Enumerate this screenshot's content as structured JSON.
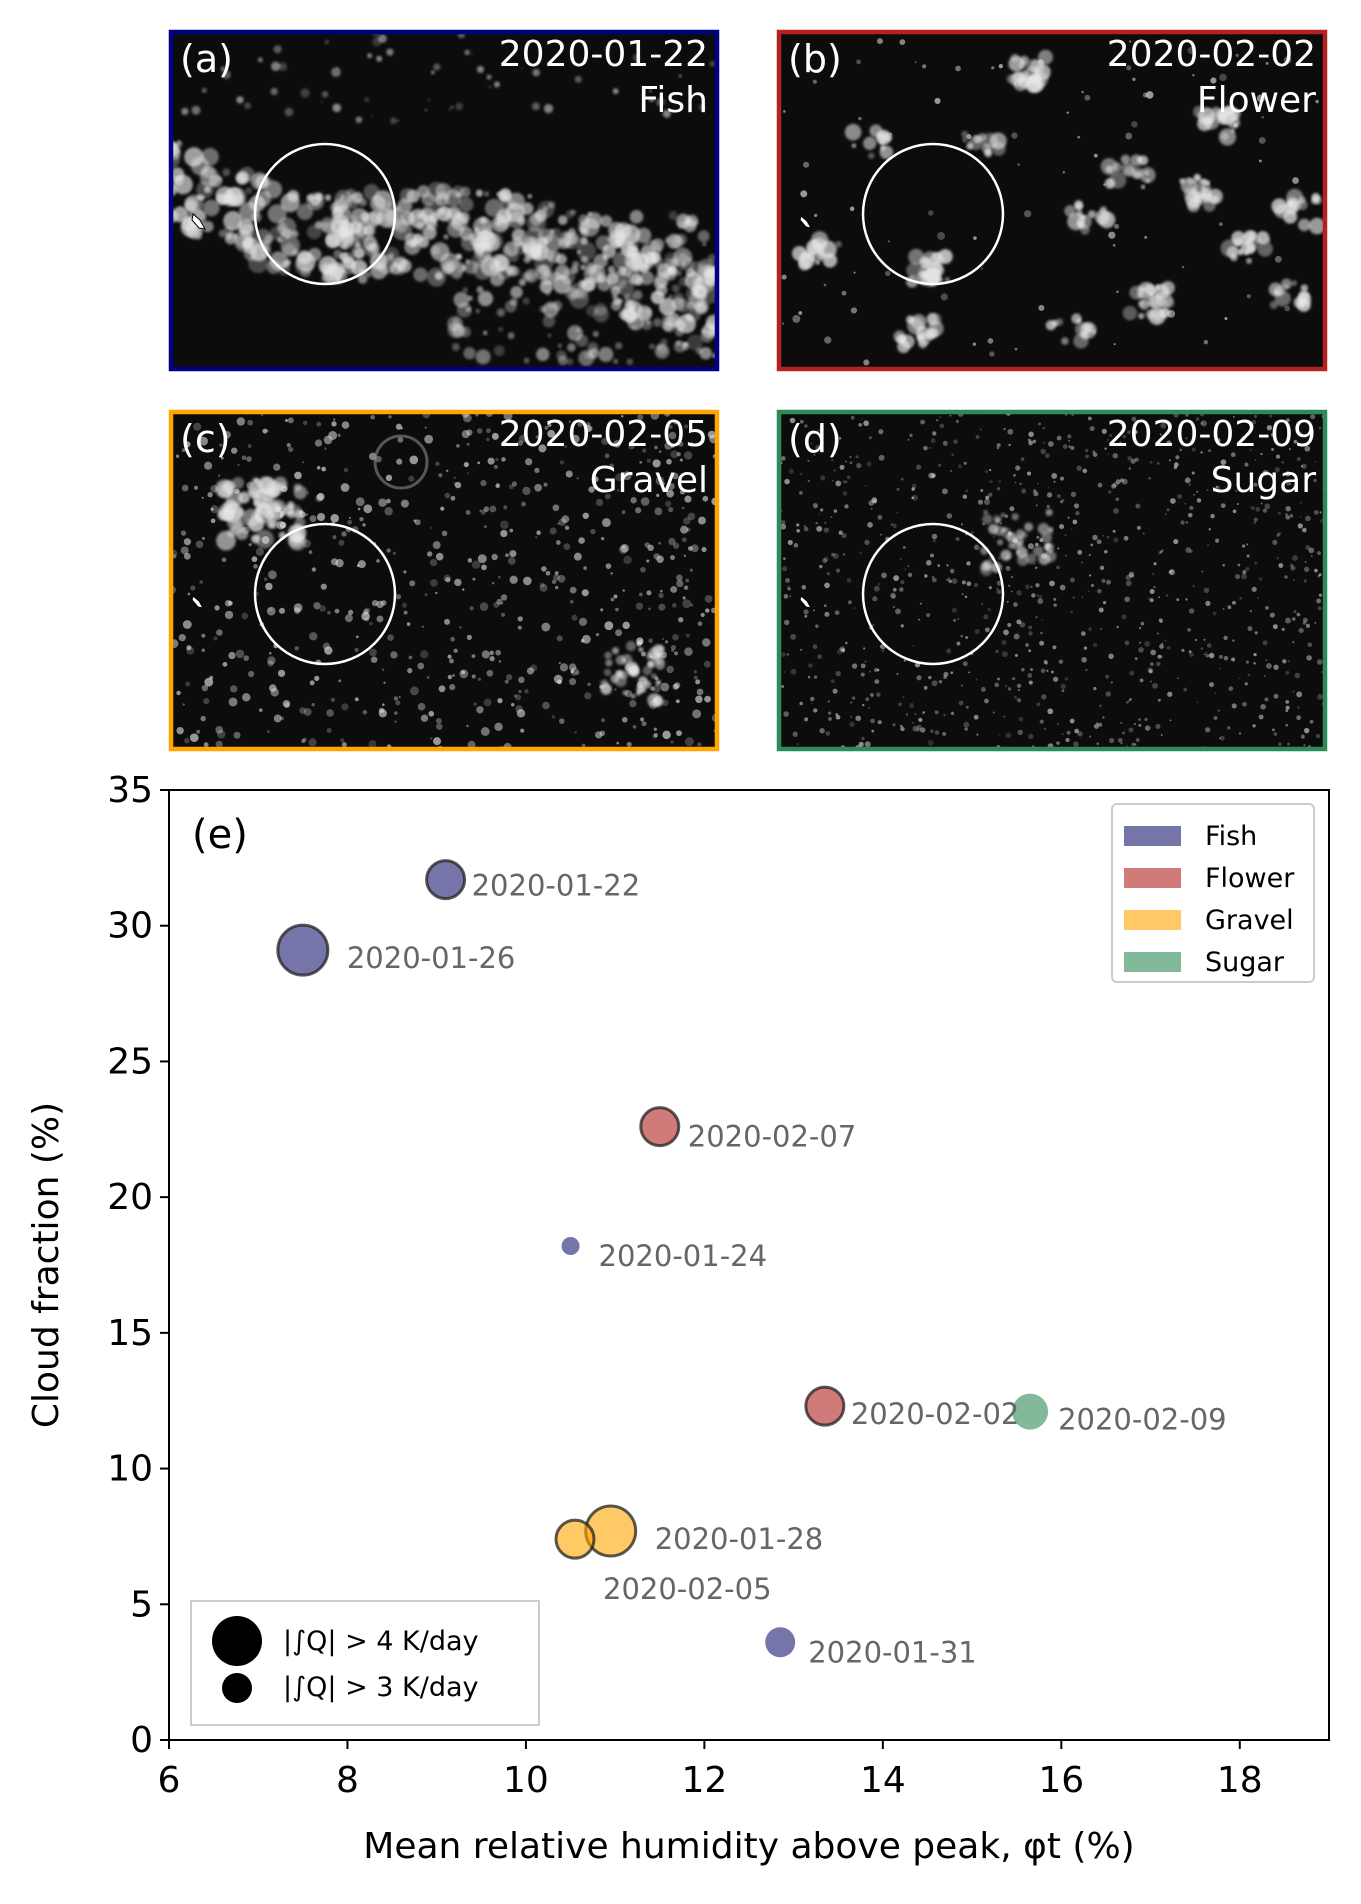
{
  "panels": [
    {
      "tag": "(a)",
      "date": "2020-01-22",
      "pattern": "Fish",
      "frame_color": "#000080",
      "texture": "fish"
    },
    {
      "tag": "(b)",
      "date": "2020-02-02",
      "pattern": "Flower",
      "frame_color": "#b22222",
      "texture": "flower"
    },
    {
      "tag": "(c)",
      "date": "2020-02-05",
      "pattern": "Gravel",
      "frame_color": "#ffa500",
      "texture": "gravel"
    },
    {
      "tag": "(d)",
      "date": "2020-02-09",
      "pattern": "Sugar",
      "frame_color": "#2e8b57",
      "texture": "sugar"
    }
  ],
  "chart_data": {
    "type": "scatter",
    "panel_label": "(e)",
    "xlabel": "Mean relative humidity above peak, φt (%)",
    "ylabel": "Cloud fraction (%)",
    "xlim": [
      6,
      19
    ],
    "ylim": [
      0,
      35
    ],
    "xticks": [
      6,
      8,
      10,
      12,
      14,
      16,
      18
    ],
    "yticks": [
      0,
      5,
      10,
      15,
      20,
      25,
      30,
      35
    ],
    "grid": false,
    "legend_placement": "top-right",
    "size_legend_placement": "bottom-left",
    "series": [
      {
        "name": "Fish",
        "color": "#191970"
      },
      {
        "name": "Flower",
        "color": "#b22222"
      },
      {
        "name": "Gravel",
        "color": "#ffa500"
      },
      {
        "name": "Sugar",
        "color": "#2e8b57"
      }
    ],
    "points": [
      {
        "label": "2020-01-22",
        "x": 9.1,
        "y": 31.7,
        "series": "Fish",
        "heating": "> 3 K/day",
        "outlined": true
      },
      {
        "label": "2020-01-26",
        "x": 7.5,
        "y": 29.1,
        "series": "Fish",
        "heating": "> 4 K/day",
        "outlined": true
      },
      {
        "label": "2020-01-24",
        "x": 10.5,
        "y": 18.2,
        "series": "Fish",
        "heating": "none",
        "outlined": false
      },
      {
        "label": "2020-01-31",
        "x": 12.85,
        "y": 3.6,
        "series": "Fish",
        "heating": "none",
        "outlined": false
      },
      {
        "label": "2020-02-07",
        "x": 11.5,
        "y": 22.6,
        "series": "Flower",
        "heating": "> 3 K/day",
        "outlined": true
      },
      {
        "label": "2020-02-02",
        "x": 13.35,
        "y": 12.3,
        "series": "Flower",
        "heating": "> 3 K/day",
        "outlined": true
      },
      {
        "label": "2020-01-28",
        "x": 10.95,
        "y": 7.7,
        "series": "Gravel",
        "heating": "> 4 K/day",
        "outlined": true
      },
      {
        "label": "2020-02-05",
        "x": 10.55,
        "y": 7.4,
        "series": "Gravel",
        "heating": "> 3 K/day",
        "outlined": true
      },
      {
        "label": "2020-02-09",
        "x": 15.65,
        "y": 12.1,
        "series": "Sugar",
        "heating": "none",
        "outlined": false
      }
    ],
    "size_legend": [
      {
        "label": "|∫Q| > 4 K/day",
        "marker": "large"
      },
      {
        "label": "|∫Q| > 3 K/day",
        "marker": "medium"
      }
    ]
  }
}
